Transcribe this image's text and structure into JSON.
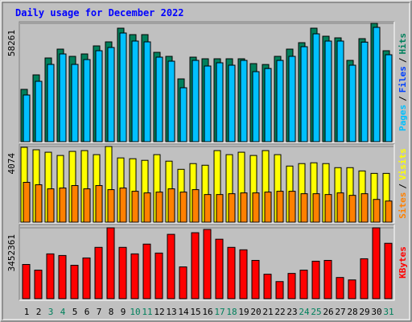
{
  "chart_data": {
    "type": "bar",
    "title": "Daily usage for December 2022",
    "categories": [
      "1",
      "2",
      "3",
      "4",
      "5",
      "6",
      "7",
      "8",
      "9",
      "10",
      "11",
      "12",
      "13",
      "14",
      "15",
      "16",
      "17",
      "18",
      "19",
      "20",
      "21",
      "22",
      "23",
      "24",
      "25",
      "26",
      "27",
      "28",
      "29",
      "30",
      "31"
    ],
    "category_colors": [
      "#000000",
      "#000000",
      "#00805c",
      "#00805c",
      "#000000",
      "#000000",
      "#000000",
      "#000000",
      "#000000",
      "#00805c",
      "#00805c",
      "#000000",
      "#000000",
      "#000000",
      "#000000",
      "#000000",
      "#00805c",
      "#00805c",
      "#000000",
      "#000000",
      "#000000",
      "#000000",
      "#000000",
      "#00805c",
      "#00805c",
      "#000000",
      "#000000",
      "#000000",
      "#000000",
      "#000000",
      "#00805c"
    ],
    "legend_separator": "/",
    "panels": [
      {
        "ylim": [
          0,
          58261
        ],
        "yticks": [
          58261
        ],
        "series": [
          {
            "name": "Pages",
            "color": "#00c0ff",
            "values": [
              22985,
              29723,
              38045,
              43197,
              38045,
              40423,
              44782,
              46367,
              53501,
              49538,
              49141,
              41612,
              39630,
              26552,
              40027,
              37252,
              38837,
              37649,
              40027,
              34478,
              36000,
              40000,
              42010,
              46763,
              53104,
              49538,
              49538,
              37649,
              49000,
              56275,
              42800
            ]
          },
          {
            "name": "Files",
            "color": "#0040ff",
            "values": [
              22985,
              29723,
              38045,
              43197,
              38045,
              40423,
              44782,
              46367,
              53501,
              49538,
              49141,
              41612,
              39630,
              26552,
              40027,
              37252,
              38837,
              37649,
              40027,
              34478,
              36000,
              40000,
              42010,
              46763,
              53104,
              49538,
              49538,
              37649,
              49000,
              56275,
              42800
            ]
          },
          {
            "name": "Hits",
            "color": "#00805c",
            "values": [
              25760,
              32893,
              41216,
              45575,
              42010,
              43197,
              47160,
              49141,
              55878,
              52709,
              52709,
              43990,
              42010,
              30913,
              41612,
              40819,
              40819,
              40819,
              40819,
              38441,
              38000,
              42010,
              45575,
              48745,
              55878,
              51915,
              51123,
              40027,
              50726,
              58261,
              44782
            ]
          }
        ]
      },
      {
        "ylim": [
          0,
          4074
        ],
        "yticks": [
          4074
        ],
        "series": [
          {
            "name": "Sites",
            "color": "#ff8000",
            "values": [
              2146,
              2015,
              1796,
              1840,
              1971,
              1796,
              1971,
              1752,
              1840,
              1664,
              1577,
              1621,
              1796,
              1621,
              1752,
              1489,
              1489,
              1533,
              1577,
              1577,
              1621,
              1664,
              1664,
              1533,
              1533,
              1489,
              1577,
              1445,
              1533,
              1226,
              1139
            ]
          },
          {
            "name": "Visits",
            "color": "#ffff00",
            "values": [
              4030,
              3899,
              3767,
              3592,
              3811,
              3854,
              3636,
              4074,
              3460,
              3416,
              3329,
              3636,
              3285,
              2847,
              3154,
              3066,
              3854,
              3636,
              3767,
              3592,
              3854,
              3636,
              3022,
              3154,
              3197,
              3154,
              2935,
              2935,
              2759,
              2628,
              2628
            ]
          }
        ]
      },
      {
        "ylim": [
          0,
          3452361
        ],
        "yticks": [
          3452361
        ],
        "series": [
          {
            "name": "KBytes",
            "color": "#ff0000",
            "values": [
              1666644,
              1388870,
              2182510,
              2103146,
              1626962,
              1984100,
              2499966,
              3452361,
              2499966,
              2182510,
              2658694,
              2222192,
              3134878,
              1547598,
              3214242,
              3372970,
              2896786,
              2499966,
              2380920,
              1865054,
              1190460,
              833322,
              1230142,
              1388870,
              1825372,
              1865054,
              1031732,
              912686,
              1944418,
              3452361,
              2698376
            ]
          }
        ]
      }
    ]
  }
}
